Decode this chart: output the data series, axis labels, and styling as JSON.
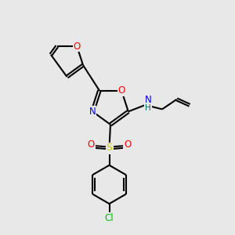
{
  "bg_color": "#e8e8e8",
  "bond_color": "#000000",
  "O_color": "#ff0000",
  "N_color": "#0000ff",
  "S_color": "#cccc00",
  "Cl_color": "#00bb00",
  "NH_color": "#007070",
  "H_color": "#007070",
  "line_width": 1.5,
  "figsize": [
    3.0,
    3.0
  ],
  "dpi": 100,
  "xlim": [
    0,
    10
  ],
  "ylim": [
    0,
    10
  ]
}
